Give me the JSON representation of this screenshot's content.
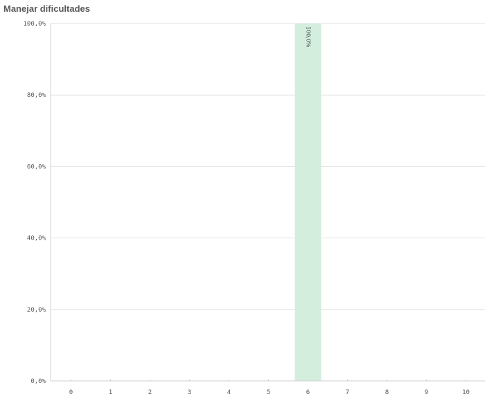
{
  "chart_data": {
    "type": "bar",
    "title": "Manejar dificultades",
    "xlabel": "",
    "ylabel": "",
    "categories": [
      "0",
      "1",
      "2",
      "3",
      "4",
      "5",
      "6",
      "7",
      "8",
      "9",
      "10"
    ],
    "values": [
      0,
      0,
      0,
      0,
      0,
      0,
      100,
      0,
      0,
      0,
      0
    ],
    "value_labels": [
      "",
      "",
      "",
      "",
      "",
      "",
      "100,0%",
      "",
      "",
      "",
      ""
    ],
    "ylim": [
      0,
      100
    ],
    "y_ticks": [
      0,
      20,
      40,
      60,
      80,
      100
    ],
    "y_tick_labels": [
      "0,0%",
      "20,0%",
      "40,0%",
      "60,0%",
      "80,0%",
      "100,0%"
    ],
    "grid": true,
    "legend": "none",
    "bar_color": "#d3eedc",
    "grid_color": "#e2e2e2"
  }
}
